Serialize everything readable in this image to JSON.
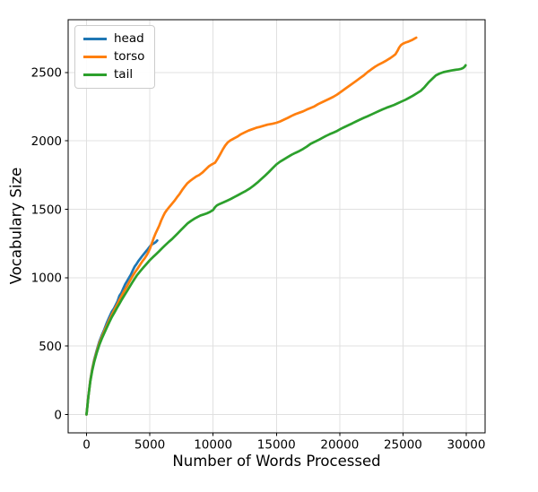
{
  "chart_data": {
    "type": "line",
    "title": "",
    "xlabel": "Number of Words Processed",
    "ylabel": "Vocabulary Size",
    "xlim": [
      -1452,
      31487
    ],
    "ylim": [
      -134,
      2885
    ],
    "x_ticks": [
      0,
      5000,
      10000,
      15000,
      20000,
      25000,
      30000
    ],
    "y_ticks": [
      0,
      500,
      1000,
      1500,
      2000,
      2500
    ],
    "grid": true,
    "grid_color": "#e0e0e0",
    "axis_color": "#000000",
    "tick_label_color": "#000000",
    "background": "#ffffff",
    "legend_position": "upper-left",
    "line_width": 2.7,
    "series": [
      {
        "name": "head",
        "color": "#1f77b4",
        "points": [
          [
            0,
            0
          ],
          [
            150,
            138
          ],
          [
            300,
            250
          ],
          [
            450,
            335
          ],
          [
            600,
            400
          ],
          [
            800,
            468
          ],
          [
            1000,
            530
          ],
          [
            1200,
            578
          ],
          [
            1400,
            622
          ],
          [
            1600,
            670
          ],
          [
            1800,
            712
          ],
          [
            2000,
            752
          ],
          [
            2150,
            772
          ],
          [
            2300,
            800
          ],
          [
            2450,
            828
          ],
          [
            2600,
            868
          ],
          [
            2750,
            888
          ],
          [
            2900,
            920
          ],
          [
            3050,
            952
          ],
          [
            3200,
            975
          ],
          [
            3350,
            998
          ],
          [
            3500,
            1022
          ],
          [
            3650,
            1052
          ],
          [
            3800,
            1080
          ],
          [
            3950,
            1100
          ],
          [
            4100,
            1122
          ],
          [
            4250,
            1140
          ],
          [
            4400,
            1158
          ],
          [
            4550,
            1175
          ],
          [
            4700,
            1192
          ],
          [
            4850,
            1210
          ],
          [
            5000,
            1228
          ],
          [
            5150,
            1242
          ],
          [
            5300,
            1250
          ],
          [
            5450,
            1258
          ],
          [
            5590,
            1272
          ]
        ]
      },
      {
        "name": "torso",
        "color": "#ff7f0e",
        "points": [
          [
            0,
            0
          ],
          [
            150,
            135
          ],
          [
            300,
            245
          ],
          [
            450,
            330
          ],
          [
            600,
            392
          ],
          [
            800,
            458
          ],
          [
            1000,
            518
          ],
          [
            1200,
            565
          ],
          [
            1400,
            610
          ],
          [
            1600,
            650
          ],
          [
            1800,
            692
          ],
          [
            2000,
            730
          ],
          [
            2200,
            765
          ],
          [
            2400,
            800
          ],
          [
            2600,
            838
          ],
          [
            2800,
            872
          ],
          [
            3000,
            905
          ],
          [
            3200,
            938
          ],
          [
            3400,
            972
          ],
          [
            3600,
            1005
          ],
          [
            3800,
            1035
          ],
          [
            4000,
            1062
          ],
          [
            4200,
            1090
          ],
          [
            4400,
            1118
          ],
          [
            4600,
            1142
          ],
          [
            4800,
            1172
          ],
          [
            5000,
            1210
          ],
          [
            5150,
            1248
          ],
          [
            5300,
            1288
          ],
          [
            5450,
            1322
          ],
          [
            5600,
            1352
          ],
          [
            5750,
            1382
          ],
          [
            5900,
            1418
          ],
          [
            6050,
            1448
          ],
          [
            6200,
            1475
          ],
          [
            6350,
            1495
          ],
          [
            6550,
            1518
          ],
          [
            6750,
            1540
          ],
          [
            6950,
            1562
          ],
          [
            7150,
            1588
          ],
          [
            7350,
            1612
          ],
          [
            7550,
            1640
          ],
          [
            7750,
            1665
          ],
          [
            7950,
            1688
          ],
          [
            8150,
            1705
          ],
          [
            8400,
            1722
          ],
          [
            8650,
            1738
          ],
          [
            8900,
            1750
          ],
          [
            9150,
            1768
          ],
          [
            9400,
            1790
          ],
          [
            9650,
            1812
          ],
          [
            9900,
            1828
          ],
          [
            10150,
            1840
          ],
          [
            10350,
            1868
          ],
          [
            10550,
            1900
          ],
          [
            10750,
            1935
          ],
          [
            10950,
            1965
          ],
          [
            11150,
            1988
          ],
          [
            11350,
            2002
          ],
          [
            11600,
            2015
          ],
          [
            11900,
            2030
          ],
          [
            12200,
            2048
          ],
          [
            12500,
            2062
          ],
          [
            12800,
            2075
          ],
          [
            13100,
            2085
          ],
          [
            13400,
            2095
          ],
          [
            13700,
            2102
          ],
          [
            14000,
            2110
          ],
          [
            14300,
            2118
          ],
          [
            14700,
            2125
          ],
          [
            15000,
            2132
          ],
          [
            15300,
            2142
          ],
          [
            15600,
            2155
          ],
          [
            15900,
            2168
          ],
          [
            16200,
            2182
          ],
          [
            16500,
            2195
          ],
          [
            16800,
            2205
          ],
          [
            17100,
            2215
          ],
          [
            17400,
            2228
          ],
          [
            17700,
            2240
          ],
          [
            18000,
            2252
          ],
          [
            18300,
            2268
          ],
          [
            18600,
            2282
          ],
          [
            18900,
            2295
          ],
          [
            19200,
            2308
          ],
          [
            19500,
            2322
          ],
          [
            19800,
            2338
          ],
          [
            20100,
            2358
          ],
          [
            20400,
            2378
          ],
          [
            20700,
            2398
          ],
          [
            21000,
            2418
          ],
          [
            21300,
            2438
          ],
          [
            21600,
            2458
          ],
          [
            21900,
            2478
          ],
          [
            22200,
            2502
          ],
          [
            22500,
            2522
          ],
          [
            22800,
            2542
          ],
          [
            23100,
            2558
          ],
          [
            23400,
            2572
          ],
          [
            23700,
            2588
          ],
          [
            24000,
            2605
          ],
          [
            24200,
            2618
          ],
          [
            24400,
            2632
          ],
          [
            24550,
            2655
          ],
          [
            24700,
            2682
          ],
          [
            24850,
            2700
          ],
          [
            25000,
            2710
          ],
          [
            25200,
            2718
          ],
          [
            25450,
            2726
          ],
          [
            25700,
            2736
          ],
          [
            25900,
            2746
          ],
          [
            26050,
            2754
          ]
        ]
      },
      {
        "name": "tail",
        "color": "#2ca02c",
        "points": [
          [
            0,
            0
          ],
          [
            150,
            132
          ],
          [
            300,
            240
          ],
          [
            450,
            322
          ],
          [
            600,
            382
          ],
          [
            800,
            448
          ],
          [
            1000,
            505
          ],
          [
            1200,
            552
          ],
          [
            1400,
            595
          ],
          [
            1600,
            635
          ],
          [
            1800,
            675
          ],
          [
            2000,
            712
          ],
          [
            2200,
            745
          ],
          [
            2400,
            778
          ],
          [
            2600,
            810
          ],
          [
            2800,
            842
          ],
          [
            3000,
            872
          ],
          [
            3200,
            902
          ],
          [
            3400,
            932
          ],
          [
            3600,
            962
          ],
          [
            3800,
            992
          ],
          [
            4000,
            1020
          ],
          [
            4250,
            1048
          ],
          [
            4500,
            1075
          ],
          [
            4750,
            1102
          ],
          [
            5000,
            1128
          ],
          [
            5250,
            1150
          ],
          [
            5500,
            1172
          ],
          [
            5750,
            1195
          ],
          [
            6000,
            1218
          ],
          [
            6250,
            1240
          ],
          [
            6500,
            1262
          ],
          [
            6750,
            1282
          ],
          [
            7000,
            1305
          ],
          [
            7250,
            1328
          ],
          [
            7500,
            1352
          ],
          [
            7750,
            1375
          ],
          [
            8000,
            1398
          ],
          [
            8250,
            1415
          ],
          [
            8500,
            1430
          ],
          [
            8750,
            1442
          ],
          [
            9000,
            1455
          ],
          [
            9250,
            1462
          ],
          [
            9500,
            1470
          ],
          [
            9750,
            1480
          ],
          [
            10000,
            1495
          ],
          [
            10150,
            1515
          ],
          [
            10300,
            1528
          ],
          [
            10500,
            1538
          ],
          [
            10800,
            1550
          ],
          [
            11100,
            1562
          ],
          [
            11400,
            1575
          ],
          [
            11700,
            1590
          ],
          [
            12000,
            1605
          ],
          [
            12300,
            1620
          ],
          [
            12600,
            1635
          ],
          [
            12900,
            1652
          ],
          [
            13200,
            1672
          ],
          [
            13500,
            1695
          ],
          [
            13800,
            1720
          ],
          [
            14100,
            1745
          ],
          [
            14400,
            1772
          ],
          [
            14700,
            1800
          ],
          [
            15000,
            1828
          ],
          [
            15300,
            1848
          ],
          [
            15600,
            1865
          ],
          [
            15900,
            1882
          ],
          [
            16200,
            1898
          ],
          [
            16500,
            1912
          ],
          [
            16800,
            1925
          ],
          [
            17100,
            1940
          ],
          [
            17400,
            1958
          ],
          [
            17700,
            1978
          ],
          [
            18000,
            1992
          ],
          [
            18300,
            2005
          ],
          [
            18600,
            2020
          ],
          [
            18900,
            2035
          ],
          [
            19200,
            2048
          ],
          [
            19500,
            2060
          ],
          [
            19800,
            2072
          ],
          [
            20100,
            2088
          ],
          [
            20400,
            2102
          ],
          [
            20700,
            2115
          ],
          [
            21000,
            2128
          ],
          [
            21300,
            2142
          ],
          [
            21600,
            2155
          ],
          [
            21900,
            2168
          ],
          [
            22200,
            2180
          ],
          [
            22500,
            2192
          ],
          [
            22800,
            2205
          ],
          [
            23100,
            2218
          ],
          [
            23400,
            2230
          ],
          [
            23700,
            2242
          ],
          [
            24000,
            2252
          ],
          [
            24300,
            2262
          ],
          [
            24600,
            2275
          ],
          [
            24900,
            2288
          ],
          [
            25200,
            2300
          ],
          [
            25500,
            2315
          ],
          [
            25800,
            2330
          ],
          [
            26100,
            2348
          ],
          [
            26400,
            2365
          ],
          [
            26700,
            2392
          ],
          [
            27000,
            2425
          ],
          [
            27300,
            2452
          ],
          [
            27600,
            2478
          ],
          [
            27900,
            2492
          ],
          [
            28200,
            2502
          ],
          [
            28500,
            2508
          ],
          [
            28800,
            2514
          ],
          [
            29100,
            2518
          ],
          [
            29400,
            2522
          ],
          [
            29600,
            2526
          ],
          [
            29750,
            2532
          ],
          [
            29870,
            2542
          ],
          [
            29950,
            2552
          ]
        ]
      }
    ]
  }
}
